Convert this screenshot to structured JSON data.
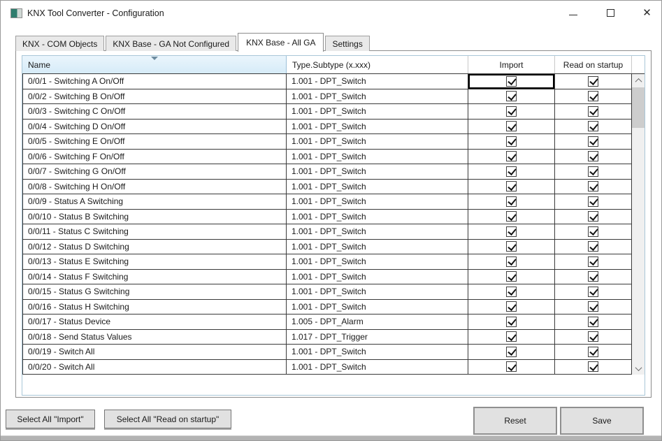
{
  "window": {
    "title": "KNX Tool Converter - Configuration",
    "icons": {
      "app": "app-icon",
      "minimize": "minimize-icon",
      "maximize": "maximize-icon",
      "close": "✕"
    }
  },
  "tabs": [
    {
      "label": "KNX - COM Objects",
      "active": false
    },
    {
      "label": "KNX Base - GA Not Configured",
      "active": false
    },
    {
      "label": "KNX Base - All GA",
      "active": true
    },
    {
      "label": "Settings",
      "active": false
    }
  ],
  "grid": {
    "columns": [
      "Name",
      "Type.Subtype (x.xxx)",
      "Import",
      "Read on startup"
    ],
    "sorted_column": "Name",
    "sort_direction": "ascending",
    "focused_cell": {
      "row_index": 0,
      "column": "Import"
    },
    "rows": [
      {
        "name": "0/0/1 - Switching A On/Off",
        "type": "1.001 - DPT_Switch",
        "import": true,
        "read_on_startup": true
      },
      {
        "name": "0/0/2 - Switching B On/Off",
        "type": "1.001 - DPT_Switch",
        "import": true,
        "read_on_startup": true
      },
      {
        "name": "0/0/3 - Switching C On/Off",
        "type": "1.001 - DPT_Switch",
        "import": true,
        "read_on_startup": true
      },
      {
        "name": "0/0/4 - Switching D On/Off",
        "type": "1.001 - DPT_Switch",
        "import": true,
        "read_on_startup": true
      },
      {
        "name": "0/0/5 - Switching E On/Off",
        "type": "1.001 - DPT_Switch",
        "import": true,
        "read_on_startup": true
      },
      {
        "name": "0/0/6 - Switching F On/Off",
        "type": "1.001 - DPT_Switch",
        "import": true,
        "read_on_startup": true
      },
      {
        "name": "0/0/7 - Switching G On/Off",
        "type": "1.001 - DPT_Switch",
        "import": true,
        "read_on_startup": true
      },
      {
        "name": "0/0/8 - Switching H On/Off",
        "type": "1.001 - DPT_Switch",
        "import": true,
        "read_on_startup": true
      },
      {
        "name": "0/0/9 - Status A Switching",
        "type": "1.001 - DPT_Switch",
        "import": true,
        "read_on_startup": true
      },
      {
        "name": "0/0/10 - Status B Switching",
        "type": "1.001 - DPT_Switch",
        "import": true,
        "read_on_startup": true
      },
      {
        "name": "0/0/11 - Status C Switching",
        "type": "1.001 - DPT_Switch",
        "import": true,
        "read_on_startup": true
      },
      {
        "name": "0/0/12 - Status D Switching",
        "type": "1.001 - DPT_Switch",
        "import": true,
        "read_on_startup": true
      },
      {
        "name": "0/0/13 - Status E Switching",
        "type": "1.001 - DPT_Switch",
        "import": true,
        "read_on_startup": true
      },
      {
        "name": "0/0/14 - Status F Switching",
        "type": "1.001 - DPT_Switch",
        "import": true,
        "read_on_startup": true
      },
      {
        "name": "0/0/15 - Status G Switching",
        "type": "1.001 - DPT_Switch",
        "import": true,
        "read_on_startup": true
      },
      {
        "name": "0/0/16 - Status H Switching",
        "type": "1.001 - DPT_Switch",
        "import": true,
        "read_on_startup": true
      },
      {
        "name": "0/0/17 - Status Device",
        "type": "1.005 - DPT_Alarm",
        "import": true,
        "read_on_startup": true
      },
      {
        "name": "0/0/18 - Send Status Values",
        "type": "1.017 - DPT_Trigger",
        "import": true,
        "read_on_startup": true
      },
      {
        "name": "0/0/19 - Switch All",
        "type": "1.001 - DPT_Switch",
        "import": true,
        "read_on_startup": true
      },
      {
        "name": "0/0/20 - Switch All",
        "type": "1.001 - DPT_Switch",
        "import": true,
        "read_on_startup": true
      }
    ]
  },
  "footer": {
    "select_all_import_label": "Select All \"Import\"",
    "select_all_read_label": "Select All \"Read on startup\"",
    "reset_label": "Reset",
    "save_label": "Save"
  },
  "colors": {
    "sorted_header_bg": "#d6ebf8",
    "grid_outer_border": "#a9c7d8",
    "grid_line": "#3a3a3a",
    "button_bg": "#e1e1e1",
    "app_icon_teal": "#2f7d6e"
  }
}
